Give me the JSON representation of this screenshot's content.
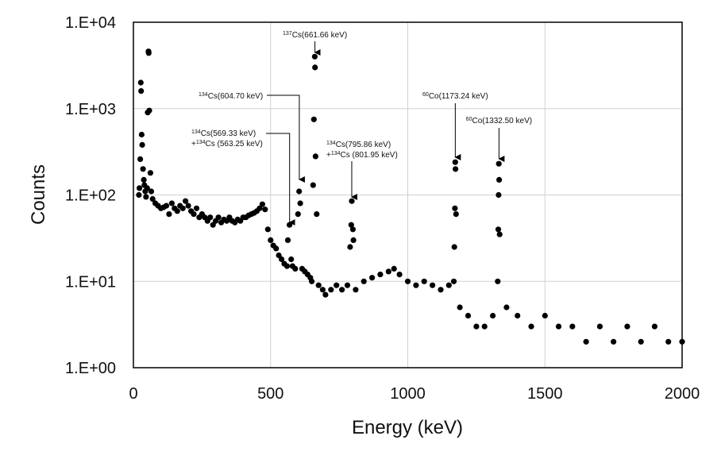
{
  "chart_data": {
    "type": "scatter",
    "title": "",
    "xlabel": "Energy (keV)",
    "ylabel": "Counts",
    "xlim": [
      0,
      2000
    ],
    "ylim": [
      1,
      10000
    ],
    "y_scale": "log",
    "grid": true,
    "legend": "none",
    "x_ticks": [
      0,
      500,
      1000,
      1500,
      2000
    ],
    "x_tick_labels": [
      "0",
      "500",
      "1000",
      "1500",
      "2000"
    ],
    "y_ticks": [
      1,
      10,
      100,
      1000,
      10000
    ],
    "y_tick_labels": [
      "1.E+00",
      "1.E+01",
      "1.E+02",
      "1.E+03",
      "1.E+04"
    ],
    "colors": {
      "points": "#000000",
      "grid": "#d0d0d0",
      "frame": "#000000"
    },
    "series": [
      {
        "points": [
          [
            20,
            100
          ],
          [
            22,
            120
          ],
          [
            25,
            260
          ],
          [
            27,
            2000
          ],
          [
            28,
            1600
          ],
          [
            30,
            500
          ],
          [
            32,
            380
          ],
          [
            35,
            200
          ],
          [
            38,
            150
          ],
          [
            40,
            130
          ],
          [
            43,
            110
          ],
          [
            46,
            95
          ],
          [
            50,
            120
          ],
          [
            52,
            900
          ],
          [
            55,
            4600
          ],
          [
            56,
            4400
          ],
          [
            58,
            950
          ],
          [
            62,
            180
          ],
          [
            65,
            110
          ],
          [
            70,
            90
          ],
          [
            80,
            80
          ],
          [
            90,
            75
          ],
          [
            100,
            70
          ],
          [
            110,
            72
          ],
          [
            120,
            75
          ],
          [
            130,
            60
          ],
          [
            140,
            80
          ],
          [
            150,
            70
          ],
          [
            160,
            65
          ],
          [
            170,
            75
          ],
          [
            180,
            70
          ],
          [
            190,
            85
          ],
          [
            200,
            75
          ],
          [
            210,
            65
          ],
          [
            220,
            60
          ],
          [
            230,
            70
          ],
          [
            240,
            55
          ],
          [
            250,
            60
          ],
          [
            260,
            55
          ],
          [
            270,
            50
          ],
          [
            280,
            55
          ],
          [
            290,
            45
          ],
          [
            300,
            50
          ],
          [
            310,
            55
          ],
          [
            320,
            48
          ],
          [
            330,
            52
          ],
          [
            340,
            50
          ],
          [
            350,
            55
          ],
          [
            360,
            50
          ],
          [
            370,
            48
          ],
          [
            380,
            52
          ],
          [
            390,
            50
          ],
          [
            400,
            55
          ],
          [
            410,
            55
          ],
          [
            420,
            58
          ],
          [
            430,
            60
          ],
          [
            440,
            62
          ],
          [
            450,
            65
          ],
          [
            460,
            70
          ],
          [
            470,
            78
          ],
          [
            480,
            68
          ],
          [
            490,
            40
          ],
          [
            500,
            30
          ],
          [
            510,
            26
          ],
          [
            520,
            24
          ],
          [
            530,
            20
          ],
          [
            540,
            18
          ],
          [
            550,
            16
          ],
          [
            560,
            15
          ],
          [
            563,
            30
          ],
          [
            569,
            45
          ],
          [
            575,
            18
          ],
          [
            580,
            15
          ],
          [
            590,
            14
          ],
          [
            600,
            60
          ],
          [
            604,
            110
          ],
          [
            608,
            80
          ],
          [
            615,
            14
          ],
          [
            625,
            13
          ],
          [
            635,
            12
          ],
          [
            645,
            11
          ],
          [
            650,
            10
          ],
          [
            655,
            130
          ],
          [
            658,
            750
          ],
          [
            661,
            4000
          ],
          [
            662,
            3000
          ],
          [
            664,
            280
          ],
          [
            668,
            60
          ],
          [
            675,
            9
          ],
          [
            690,
            8
          ],
          [
            700,
            7
          ],
          [
            720,
            8
          ],
          [
            740,
            9
          ],
          [
            760,
            8
          ],
          [
            780,
            9
          ],
          [
            790,
            25
          ],
          [
            794,
            45
          ],
          [
            796,
            85
          ],
          [
            800,
            40
          ],
          [
            802,
            30
          ],
          [
            810,
            8
          ],
          [
            840,
            10
          ],
          [
            870,
            11
          ],
          [
            900,
            12
          ],
          [
            930,
            13
          ],
          [
            950,
            14
          ],
          [
            970,
            12
          ],
          [
            1000,
            10
          ],
          [
            1030,
            9
          ],
          [
            1060,
            10
          ],
          [
            1090,
            9
          ],
          [
            1120,
            8
          ],
          [
            1150,
            9
          ],
          [
            1168,
            10
          ],
          [
            1170,
            25
          ],
          [
            1172,
            70
          ],
          [
            1173,
            240
          ],
          [
            1174,
            200
          ],
          [
            1176,
            60
          ],
          [
            1190,
            5
          ],
          [
            1220,
            4
          ],
          [
            1250,
            3
          ],
          [
            1280,
            3
          ],
          [
            1310,
            4
          ],
          [
            1328,
            10
          ],
          [
            1330,
            40
          ],
          [
            1331,
            100
          ],
          [
            1332,
            230
          ],
          [
            1333,
            150
          ],
          [
            1335,
            35
          ],
          [
            1360,
            5
          ],
          [
            1400,
            4
          ],
          [
            1450,
            3
          ],
          [
            1500,
            4
          ],
          [
            1550,
            3
          ],
          [
            1600,
            3
          ],
          [
            1650,
            2
          ],
          [
            1700,
            3
          ],
          [
            1750,
            2
          ],
          [
            1800,
            3
          ],
          [
            1850,
            2
          ],
          [
            1900,
            3
          ],
          [
            1950,
            2
          ],
          [
            2000,
            2
          ]
        ]
      }
    ],
    "annotations": [
      {
        "mass": "137",
        "text": "Cs(661.66 keV)",
        "x": 661.66,
        "y": 4000
      },
      {
        "mass": "134",
        "text": "Cs(604.70 keV)",
        "x": 604.7,
        "y": 110
      },
      {
        "mass": "134",
        "text": "Cs(569.33 keV)",
        "mass2": "134",
        "text2": "Cs (563.25 keV)",
        "x": 569.33,
        "y": 45
      },
      {
        "mass": "134",
        "text": "Cs(795.86 keV)",
        "mass2": "134",
        "text2": "Cs (801.95 keV)",
        "x": 795.86,
        "y": 85
      },
      {
        "mass": "60",
        "text": "Co(1173.24 keV)",
        "x": 1173.24,
        "y": 240
      },
      {
        "mass": "60",
        "text": "Co(1332.50 keV)",
        "x": 1332.5,
        "y": 230
      }
    ]
  }
}
